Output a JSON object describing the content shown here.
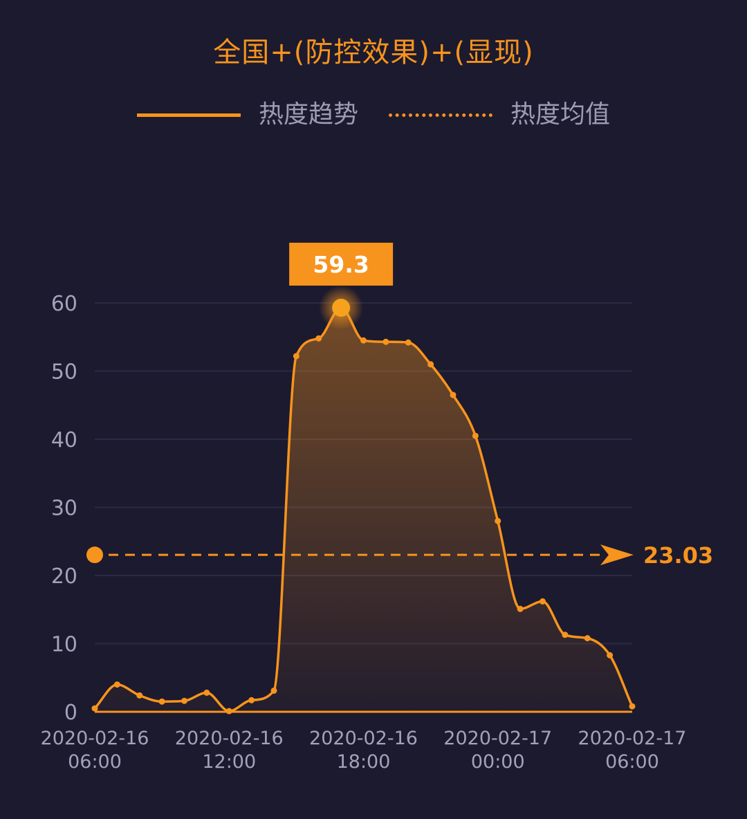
{
  "chart_data": {
    "type": "line",
    "title": "全国+(防控效果)+(显现)",
    "series": [
      {
        "name": "热度趋势",
        "style": "solid",
        "values": [
          0.5,
          4.0,
          2.4,
          1.5,
          1.6,
          2.8,
          0.1,
          1.7,
          3.1,
          52.2,
          54.8,
          59.3,
          54.5,
          54.3,
          54.2,
          51.0,
          46.5,
          40.5,
          28.0,
          15.1,
          16.2,
          11.3,
          10.8,
          8.3,
          0.8
        ]
      }
    ],
    "average": {
      "name": "热度均值",
      "value": 23.03,
      "label": "23.03"
    },
    "peak": {
      "value": 59.3,
      "label": "59.3"
    },
    "x_labels": [
      {
        "date": "2020-02-16",
        "time": "06:00"
      },
      {
        "date": "2020-02-16",
        "time": "12:00"
      },
      {
        "date": "2020-02-16",
        "time": "18:00"
      },
      {
        "date": "2020-02-17",
        "time": "00:00"
      },
      {
        "date": "2020-02-17",
        "time": "06:00"
      }
    ],
    "y_ticks": [
      "0",
      "10",
      "20",
      "30",
      "40",
      "50",
      "60"
    ],
    "ylim": [
      0,
      60
    ],
    "grid": true,
    "legend_position": "top-center",
    "colors": {
      "background": "#1c1a2e",
      "line": "#f7941d",
      "grid": "#2c2a44",
      "tick_text": "#a3a2b8",
      "legend_text": "#9d9cb2"
    }
  }
}
